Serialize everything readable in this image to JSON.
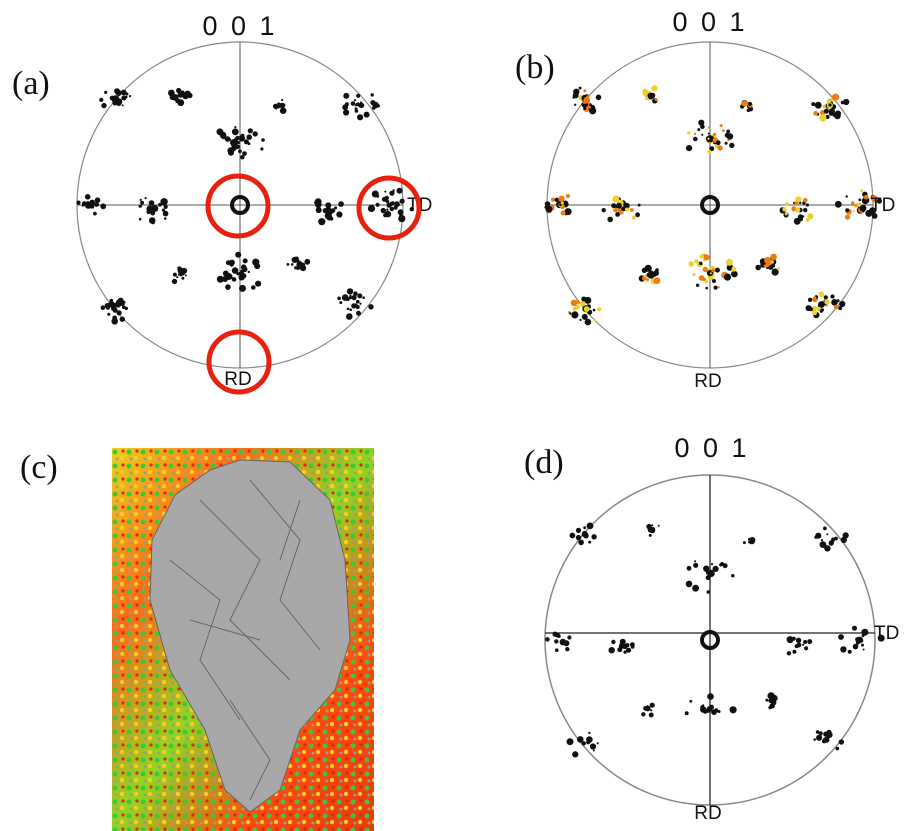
{
  "panels": [
    {
      "label": "(a)",
      "pole": "0 0 1",
      "x_axis": "TD",
      "y_axis": "RD"
    },
    {
      "label": "(b)",
      "pole": "0 0 1",
      "x_axis": "TD",
      "y_axis": "RD"
    },
    {
      "label": "(c)"
    },
    {
      "label": "(d)",
      "pole": "0 0 1",
      "x_axis": "TD",
      "y_axis": "RD"
    }
  ]
}
